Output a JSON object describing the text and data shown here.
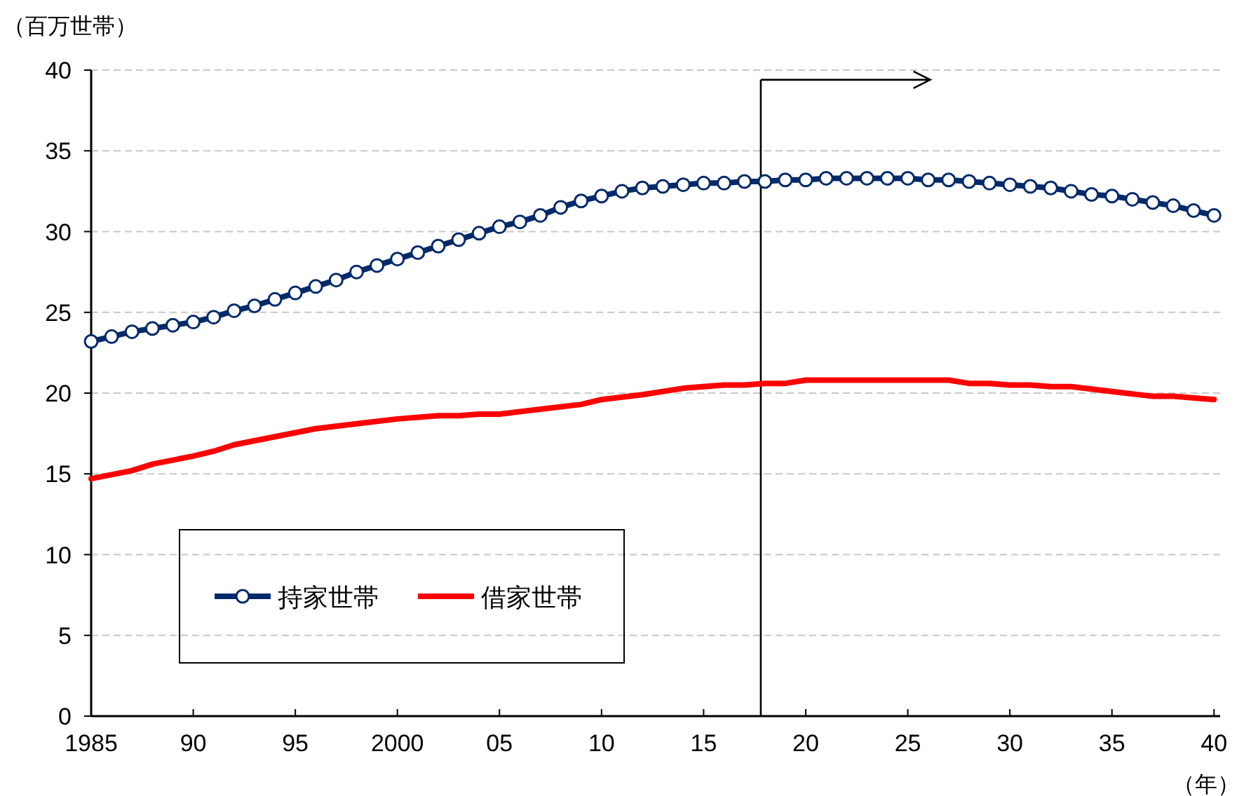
{
  "chart_data": {
    "type": "line",
    "ylabel": "（百万世帯）",
    "xlabel": "（年）",
    "xlim": [
      1985,
      2040.3
    ],
    "ylim": [
      0,
      40
    ],
    "xticks": [
      1985,
      {
        "value": 1990,
        "label": "90"
      },
      {
        "value": 1995,
        "label": "95"
      },
      2000,
      {
        "value": 2005,
        "label": "05"
      },
      {
        "value": 2010,
        "label": "10"
      },
      {
        "value": 2015,
        "label": "15"
      },
      {
        "value": 2020,
        "label": "20"
      },
      {
        "value": 2025,
        "label": "25"
      },
      {
        "value": 2030,
        "label": "30"
      },
      {
        "value": 2035,
        "label": "35"
      },
      {
        "value": 2040,
        "label": "40"
      }
    ],
    "yticks": [
      0,
      5,
      10,
      15,
      20,
      25,
      30,
      35,
      40
    ],
    "grid": "y",
    "legend": "bottom left",
    "ref_lines": [
      {
        "axis": "x",
        "value": 2017.8,
        "color": "#000000"
      }
    ],
    "series": [
      {
        "name": "持家世帯",
        "color": "#002a6a",
        "marker": "circle",
        "x": [
          1985,
          1986,
          1987,
          1988,
          1989,
          1990,
          1991,
          1992,
          1993,
          1994,
          1995,
          1996,
          1997,
          1998,
          1999,
          2000,
          2001,
          2002,
          2003,
          2004,
          2005,
          2006,
          2007,
          2008,
          2009,
          2010,
          2011,
          2012,
          2013,
          2014,
          2015,
          2016,
          2017,
          2018,
          2019,
          2020,
          2021,
          2022,
          2023,
          2024,
          2025,
          2026,
          2027,
          2028,
          2029,
          2030,
          2031,
          2032,
          2033,
          2034,
          2035,
          2036,
          2037,
          2038,
          2039,
          2040
        ],
        "values": [
          23.2,
          23.5,
          23.8,
          24.0,
          24.2,
          24.4,
          24.7,
          25.1,
          25.4,
          25.8,
          26.2,
          26.6,
          27.0,
          27.5,
          27.9,
          28.3,
          28.7,
          29.1,
          29.5,
          29.9,
          30.3,
          30.6,
          31.0,
          31.5,
          31.9,
          32.2,
          32.5,
          32.7,
          32.8,
          32.9,
          33.0,
          33.0,
          33.1,
          33.1,
          33.2,
          33.2,
          33.3,
          33.3,
          33.3,
          33.3,
          33.3,
          33.2,
          33.2,
          33.1,
          33.0,
          32.9,
          32.8,
          32.7,
          32.5,
          32.3,
          32.2,
          32.0,
          31.8,
          31.6,
          31.3,
          31.0
        ]
      },
      {
        "name": "借家世帯",
        "color": "#ff0000",
        "marker": "none",
        "x": [
          1985,
          1987,
          1988,
          1990,
          1991,
          1992,
          1994,
          1996,
          1998,
          2000,
          2002,
          2003,
          2004,
          2005,
          2007,
          2009,
          2010,
          2012,
          2014,
          2016,
          2017,
          2018,
          2019,
          2020,
          2027,
          2028,
          2029,
          2030,
          2031,
          2032,
          2033,
          2035,
          2037,
          2038,
          2040
        ],
        "values": [
          14.7,
          15.2,
          15.6,
          16.1,
          16.4,
          16.8,
          17.3,
          17.8,
          18.1,
          18.4,
          18.6,
          18.6,
          18.7,
          18.7,
          19.0,
          19.3,
          19.6,
          19.9,
          20.3,
          20.5,
          20.5,
          20.6,
          20.6,
          20.8,
          20.8,
          20.6,
          20.6,
          20.5,
          20.5,
          20.4,
          20.4,
          20.1,
          19.8,
          19.8,
          19.6
        ]
      }
    ]
  }
}
